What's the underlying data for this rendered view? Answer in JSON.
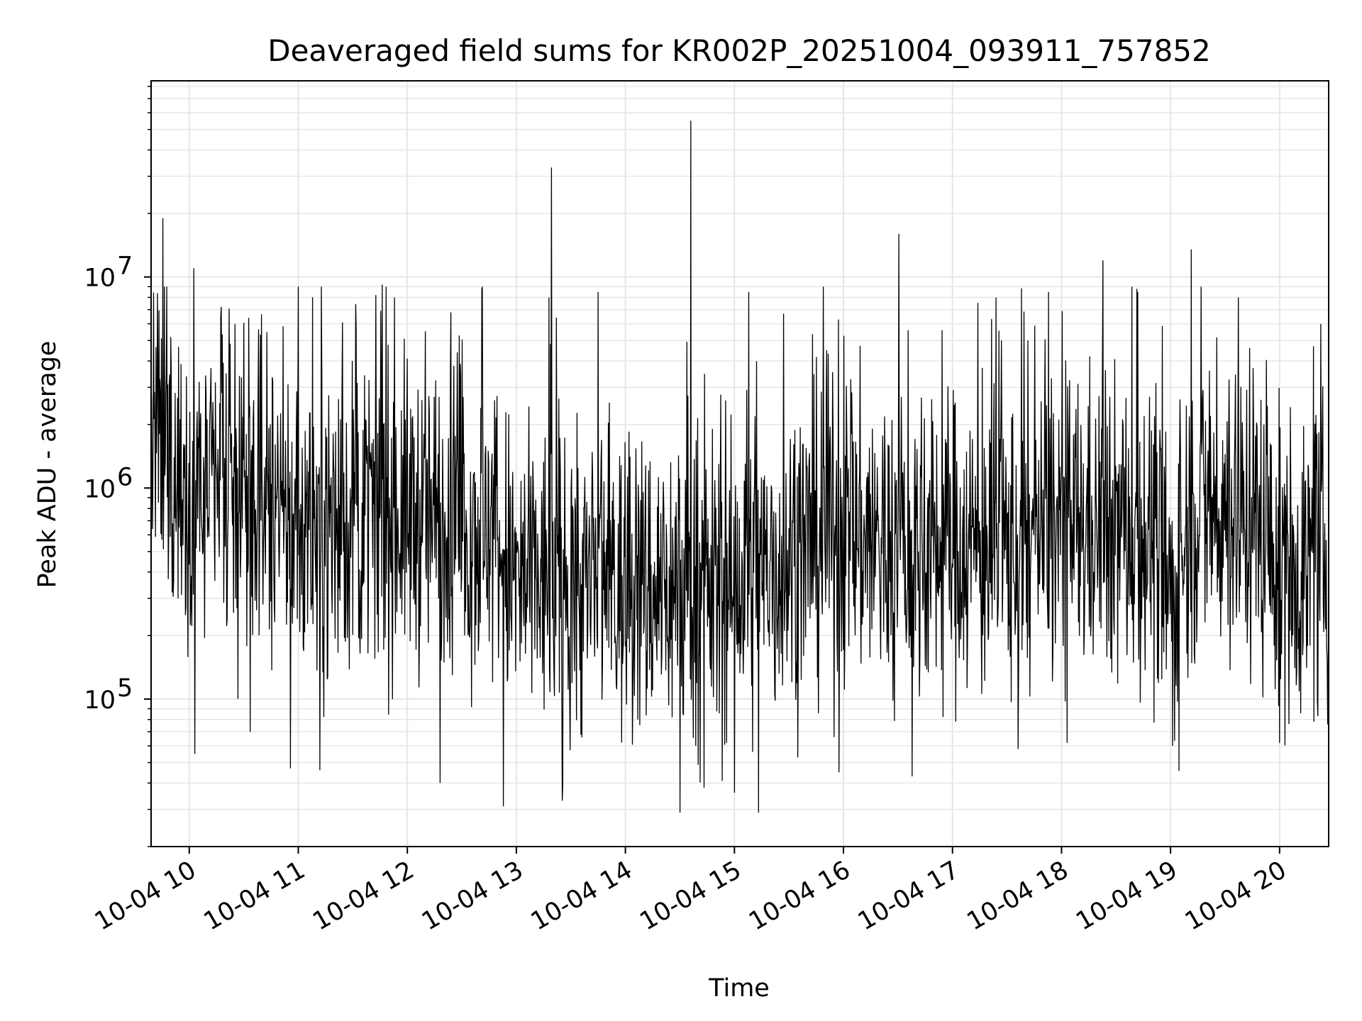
{
  "chart_data": {
    "type": "line",
    "title": "Deaveraged field sums for KR002P_20251004_093911_757852",
    "xlabel": "Time",
    "ylabel": "Peak ADU - average",
    "yscale": "log",
    "ylim": [
      20000,
      85000000
    ],
    "xlim_hours": [
      9.65,
      20.45
    ],
    "grid": true,
    "line_color": "#000000",
    "grid_color": "#e6e6e6",
    "x_ticks": [
      {
        "hour": 10,
        "label": "10-04 10"
      },
      {
        "hour": 11,
        "label": "10-04 11"
      },
      {
        "hour": 12,
        "label": "10-04 12"
      },
      {
        "hour": 13,
        "label": "10-04 13"
      },
      {
        "hour": 14,
        "label": "10-04 14"
      },
      {
        "hour": 15,
        "label": "10-04 15"
      },
      {
        "hour": 16,
        "label": "10-04 16"
      },
      {
        "hour": 17,
        "label": "10-04 17"
      },
      {
        "hour": 18,
        "label": "10-04 18"
      },
      {
        "hour": 19,
        "label": "10-04 19"
      },
      {
        "hour": 20,
        "label": "10-04 20"
      }
    ],
    "y_ticks": [
      {
        "value": 100000,
        "base": "10",
        "exp": "5"
      },
      {
        "value": 1000000,
        "base": "10",
        "exp": "6"
      },
      {
        "value": 10000000,
        "base": "10",
        "exp": "7"
      }
    ],
    "baseline": [
      {
        "hour": 9.65,
        "value": 1800000
      },
      {
        "hour": 10.0,
        "value": 1000000
      },
      {
        "hour": 11.0,
        "value": 650000
      },
      {
        "hour": 12.0,
        "value": 750000
      },
      {
        "hour": 12.8,
        "value": 620000
      },
      {
        "hour": 13.0,
        "value": 350000
      },
      {
        "hour": 14.0,
        "value": 330000
      },
      {
        "hour": 15.0,
        "value": 330000
      },
      {
        "hour": 15.6,
        "value": 500000
      },
      {
        "hour": 16.0,
        "value": 650000
      },
      {
        "hour": 16.5,
        "value": 480000
      },
      {
        "hour": 17.0,
        "value": 550000
      },
      {
        "hour": 17.5,
        "value": 500000
      },
      {
        "hour": 18.0,
        "value": 650000
      },
      {
        "hour": 18.8,
        "value": 620000
      },
      {
        "hour": 19.0,
        "value": 280000
      },
      {
        "hour": 19.2,
        "value": 800000
      },
      {
        "hour": 19.8,
        "value": 700000
      },
      {
        "hour": 20.0,
        "value": 400000
      },
      {
        "hour": 20.45,
        "value": 450000
      }
    ],
    "spikes": [
      {
        "hour": 9.76,
        "value": 19000000
      },
      {
        "hour": 9.83,
        "value": 5200000
      },
      {
        "hour": 10.04,
        "value": 11000000
      },
      {
        "hour": 10.29,
        "value": 6500000
      },
      {
        "hour": 10.42,
        "value": 6000000
      },
      {
        "hour": 11.77,
        "value": 9200000
      },
      {
        "hour": 11.88,
        "value": 8000000
      },
      {
        "hour": 12.4,
        "value": 6800000
      },
      {
        "hour": 13.3,
        "value": 8000000
      },
      {
        "hour": 13.32,
        "value": 33000000
      },
      {
        "hour": 13.75,
        "value": 8500000
      },
      {
        "hour": 14.6,
        "value": 55000000
      },
      {
        "hour": 15.13,
        "value": 8500000
      },
      {
        "hour": 15.45,
        "value": 6700000
      },
      {
        "hour": 16.51,
        "value": 16000000
      },
      {
        "hour": 17.4,
        "value": 8000000
      },
      {
        "hour": 17.88,
        "value": 8500000
      },
      {
        "hour": 18.38,
        "value": 12000000
      },
      {
        "hour": 18.7,
        "value": 8500000
      },
      {
        "hour": 19.19,
        "value": 13500000
      },
      {
        "hour": 19.62,
        "value": 8000000
      },
      {
        "hour": 20.38,
        "value": 6000000
      }
    ],
    "dips": [
      {
        "hour": 10.05,
        "value": 55000
      },
      {
        "hour": 10.56,
        "value": 70000
      },
      {
        "hour": 10.93,
        "value": 47000
      },
      {
        "hour": 11.2,
        "value": 46000
      },
      {
        "hour": 12.3,
        "value": 40000
      },
      {
        "hour": 12.88,
        "value": 31000
      },
      {
        "hour": 13.42,
        "value": 33000
      },
      {
        "hour": 14.5,
        "value": 29000
      },
      {
        "hour": 14.72,
        "value": 38000
      },
      {
        "hour": 15.22,
        "value": 29000
      },
      {
        "hour": 15.0,
        "value": 36000
      },
      {
        "hour": 15.96,
        "value": 45000
      },
      {
        "hour": 16.63,
        "value": 43000
      },
      {
        "hour": 17.6,
        "value": 58000
      },
      {
        "hour": 18.05,
        "value": 62000
      },
      {
        "hour": 19.02,
        "value": 60000
      },
      {
        "hour": 20.0,
        "value": 62000
      }
    ],
    "series_note": "Dense minute-cadence black line (~2400 samples); noise envelope roughly 0.1x-5x of baseline"
  }
}
